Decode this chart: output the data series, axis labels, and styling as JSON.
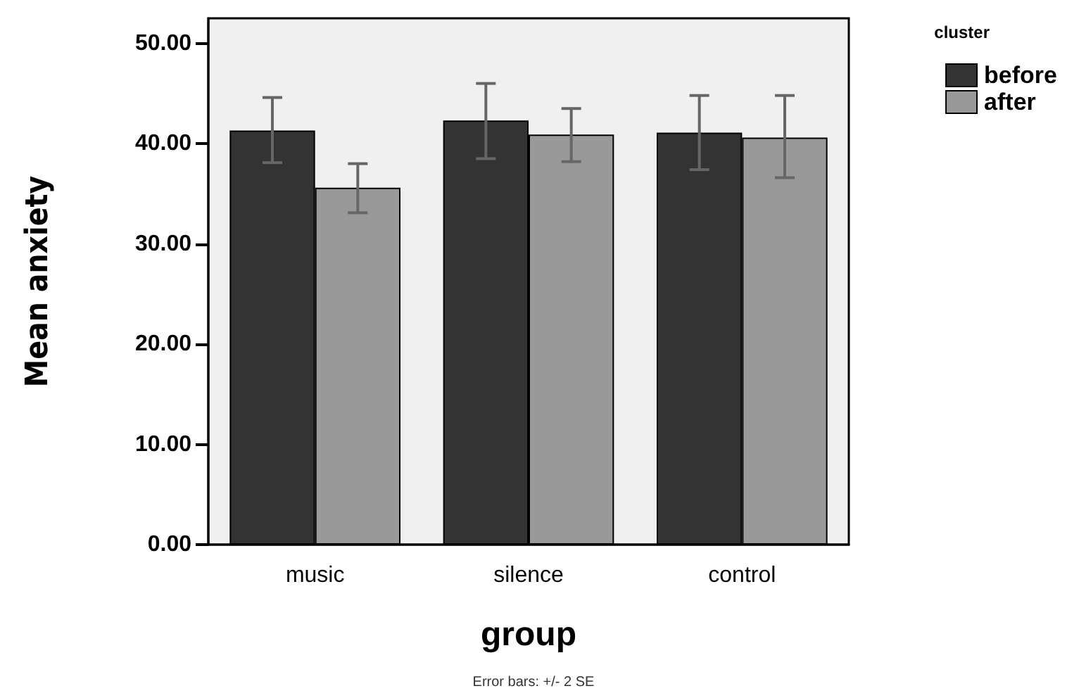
{
  "chart_data": {
    "type": "bar",
    "xlabel": "group",
    "ylabel": "Mean anxiety",
    "legend_title": "cluster",
    "annotations": [
      "Error bars: +/- 2 SE"
    ],
    "categories": [
      "music",
      "silence",
      "control"
    ],
    "series": [
      {
        "name": "before",
        "color": "#333333",
        "values": [
          41.3,
          42.3,
          41.1
        ],
        "errors": [
          [
            38.1,
            44.6
          ],
          [
            38.5,
            46.0
          ],
          [
            37.4,
            44.8
          ]
        ]
      },
      {
        "name": "after",
        "color": "#999999",
        "values": [
          35.6,
          40.9,
          40.6
        ],
        "errors": [
          [
            33.1,
            38.0
          ],
          [
            38.2,
            43.5
          ],
          [
            36.6,
            44.8
          ]
        ]
      }
    ],
    "ylim": [
      0,
      52.5
    ],
    "yticks": [
      {
        "value": 0,
        "label": "0.00"
      },
      {
        "value": 10,
        "label": "10.00"
      },
      {
        "value": 20,
        "label": "20.00"
      },
      {
        "value": 30,
        "label": "30.00"
      },
      {
        "value": 40,
        "label": "40.00"
      },
      {
        "value": 50,
        "label": "50.00"
      }
    ],
    "grid": false,
    "legend": "top right"
  }
}
